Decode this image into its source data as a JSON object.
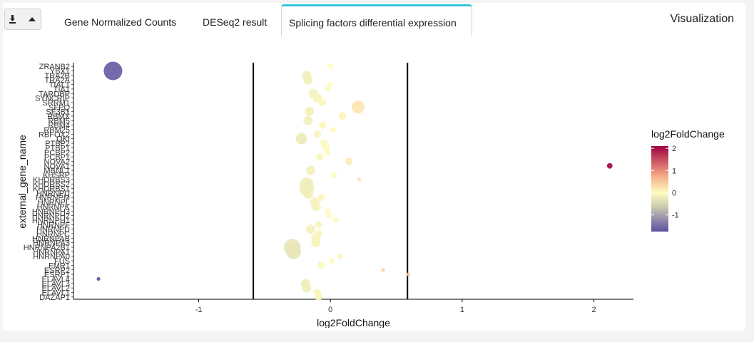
{
  "toolbar": {
    "download_icon": "download-icon",
    "caret_icon": "caret-up-icon"
  },
  "tabs": [
    {
      "label": "Gene Normalized Counts",
      "active": false
    },
    {
      "label": "DESeq2 result",
      "active": false
    },
    {
      "label": "Splicing factors differential expression",
      "active": true
    }
  ],
  "header": {
    "title": "Visualization"
  },
  "chart_data": {
    "type": "scatter",
    "xlabel": "log2FoldChange",
    "ylabel": "external_gene_name",
    "xlim": [
      -1.95,
      2.3
    ],
    "xticks": [
      -1,
      0,
      1,
      2
    ],
    "vlines": [
      -0.585,
      0.585
    ],
    "legend": {
      "title": "log2FoldChange",
      "placement": "right",
      "ticks": [
        2,
        1,
        0,
        -1
      ],
      "range": [
        -1.75,
        2.1
      ],
      "colors": [
        "#5e4fa2",
        "#e6e6c0",
        "#fffcbf",
        "#f4a582",
        "#9e0142"
      ]
    },
    "genes": [
      {
        "name": "ZRANB2",
        "x": 0.0,
        "size": 3
      },
      {
        "name": "YBX1",
        "x": -1.65,
        "size": 10
      },
      {
        "name": "TRA2B",
        "x": -0.18,
        "size": 5
      },
      {
        "name": "TRA2A",
        "x": -0.17,
        "size": 5
      },
      {
        "name": "TIAL1",
        "x": 0.0,
        "size": 3
      },
      {
        "name": "TIA1",
        "x": -0.02,
        "size": 3
      },
      {
        "name": "TARDBP",
        "x": -0.13,
        "size": 5
      },
      {
        "name": "SYNCRIP",
        "x": -0.1,
        "size": 5
      },
      {
        "name": "SRRM1",
        "x": -0.06,
        "size": 4
      },
      {
        "name": "SFPQ",
        "x": 0.21,
        "size": 7
      },
      {
        "name": "SF3B1",
        "x": -0.16,
        "size": 5
      },
      {
        "name": "RBMX",
        "x": 0.09,
        "size": 4
      },
      {
        "name": "RBM5",
        "x": -0.17,
        "size": 5
      },
      {
        "name": "RBM4",
        "x": -0.06,
        "size": 4
      },
      {
        "name": "RBM25",
        "x": 0.02,
        "size": 3
      },
      {
        "name": "RBFOX2",
        "x": -0.1,
        "size": 4
      },
      {
        "name": "QKI",
        "x": -0.22,
        "size": 6
      },
      {
        "name": "PTBP2",
        "x": -0.05,
        "size": 4
      },
      {
        "name": "PTBP1",
        "x": -0.03,
        "size": 4
      },
      {
        "name": "PCBP2",
        "x": -0.02,
        "size": 3
      },
      {
        "name": "PCBP1",
        "x": -0.08,
        "size": 4
      },
      {
        "name": "NOVA2",
        "x": 0.14,
        "size": 4
      },
      {
        "name": "NOVA1",
        "x": 2.12,
        "size": 3
      },
      {
        "name": "MBNL1",
        "x": -0.15,
        "size": 5
      },
      {
        "name": "KHSRP",
        "x": 0.03,
        "size": 3
      },
      {
        "name": "KHDRBS3",
        "x": 0.22,
        "size": 2
      },
      {
        "name": "KHDRBS2",
        "x": -0.18,
        "size": 7
      },
      {
        "name": "KHDRBS1",
        "x": -0.18,
        "size": 8
      },
      {
        "name": "HNRNPU",
        "x": -0.17,
        "size": 6
      },
      {
        "name": "HNRNPM",
        "x": -0.07,
        "size": 4
      },
      {
        "name": "HNRNPL",
        "x": -0.12,
        "size": 5
      },
      {
        "name": "HNRNPK",
        "x": -0.11,
        "size": 5
      },
      {
        "name": "HNRNPH3",
        "x": -0.02,
        "size": 3
      },
      {
        "name": "HNRNPH2",
        "x": -0.01,
        "size": 3
      },
      {
        "name": "HNRNPH1",
        "x": 0.04,
        "size": 3
      },
      {
        "name": "HNRNPF",
        "x": -0.09,
        "size": 4
      },
      {
        "name": "HNRNPD",
        "x": -0.15,
        "size": 5
      },
      {
        "name": "HNRNPC",
        "x": -0.09,
        "size": 4
      },
      {
        "name": "HNRNPAB",
        "x": -0.11,
        "size": 5
      },
      {
        "name": "HNRNPA3",
        "x": -0.11,
        "size": 5
      },
      {
        "name": "HNRNPA2B1",
        "x": -0.29,
        "size": 9
      },
      {
        "name": "HNRNPA1",
        "x": -0.28,
        "size": 8
      },
      {
        "name": "HNRNPA0",
        "x": 0.07,
        "size": 3
      },
      {
        "name": "FUS",
        "x": 0.01,
        "size": 3
      },
      {
        "name": "FMR1",
        "x": -0.07,
        "size": 4
      },
      {
        "name": "ESRP2",
        "x": 0.4,
        "size": 2
      },
      {
        "name": "ESRP1",
        "x": 0.59,
        "size": 2
      },
      {
        "name": "ELAVL4",
        "x": -1.76,
        "size": 2
      },
      {
        "name": "ELAVL3",
        "x": -0.19,
        "size": 5
      },
      {
        "name": "ELAVL2",
        "x": -0.18,
        "size": 5
      },
      {
        "name": "ELAVL1",
        "x": -0.1,
        "size": 4
      },
      {
        "name": "DAZAP1",
        "x": -0.09,
        "size": 4
      }
    ]
  }
}
